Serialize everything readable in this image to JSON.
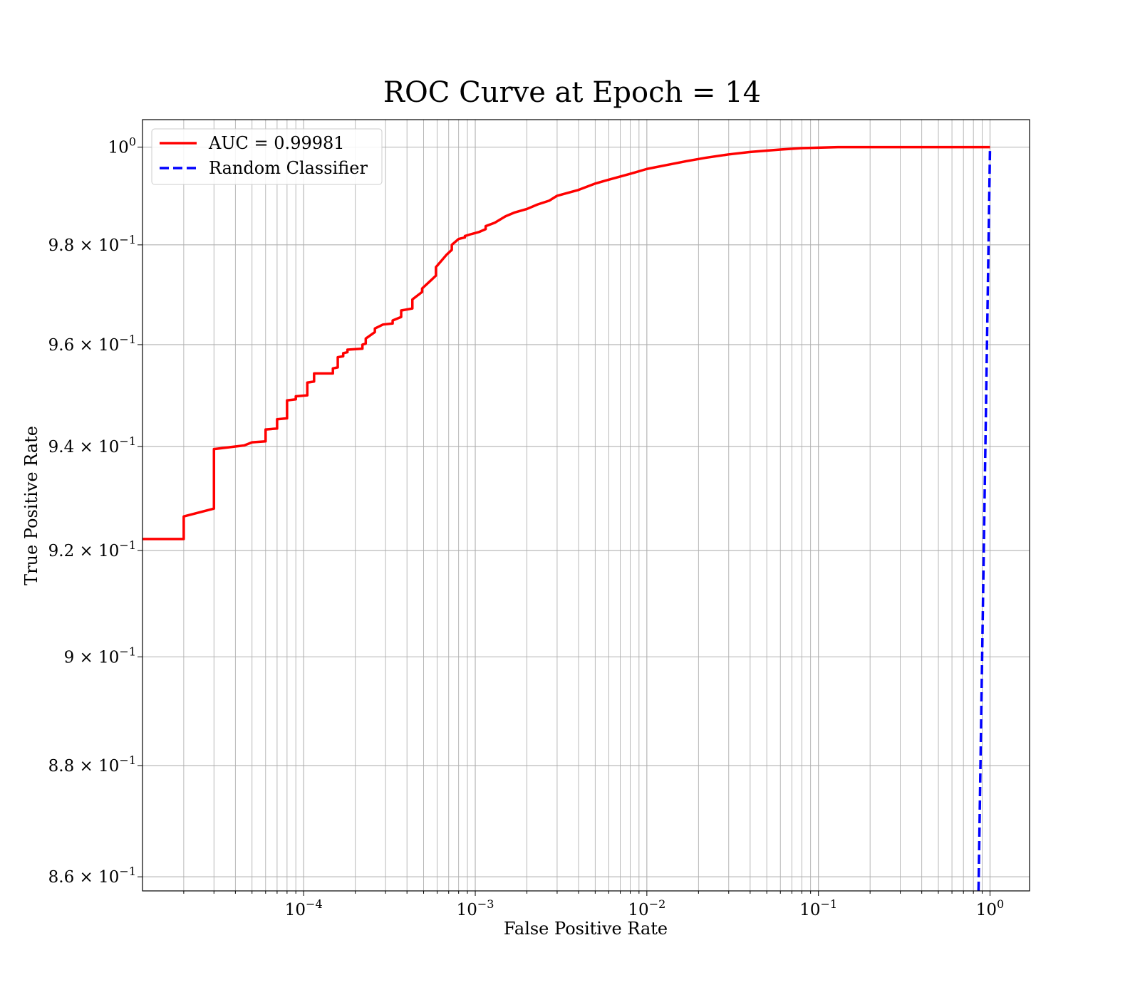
{
  "chart_data": {
    "type": "line",
    "title": "ROC Curve at Epoch = 14",
    "xlabel": "False Positive Rate",
    "ylabel": "True Positive Rate",
    "xscale": "log",
    "yscale": "log",
    "xlim": [
      1.15e-05,
      1.7
    ],
    "ylim": [
      0.8575,
      1.0057
    ],
    "grid": true,
    "legend_position": "upper-left",
    "x_ticks": [
      {
        "value": 0.0001,
        "base": "10",
        "exp": "−4"
      },
      {
        "value": 0.001,
        "base": "10",
        "exp": "−3"
      },
      {
        "value": 0.01,
        "base": "10",
        "exp": "−2"
      },
      {
        "value": 0.1,
        "base": "10",
        "exp": "−1"
      },
      {
        "value": 1,
        "base": "10",
        "exp": "0"
      }
    ],
    "y_ticks": [
      {
        "value": 0.86,
        "base": "8.6 × 10",
        "exp": "−1"
      },
      {
        "value": 0.88,
        "base": "8.8 × 10",
        "exp": "−1"
      },
      {
        "value": 0.9,
        "base": "9 × 10",
        "exp": "−1"
      },
      {
        "value": 0.92,
        "base": "9.2 × 10",
        "exp": "−1"
      },
      {
        "value": 0.94,
        "base": "9.4 × 10",
        "exp": "−1"
      },
      {
        "value": 0.96,
        "base": "9.6 × 10",
        "exp": "−1"
      },
      {
        "value": 0.98,
        "base": "9.8 × 10",
        "exp": "−1"
      },
      {
        "value": 1.0,
        "base": "10",
        "exp": "0"
      }
    ],
    "series": [
      {
        "name": "AUC = 0.99981",
        "color": "#ff0000",
        "style": "solid",
        "points": [
          [
            1.15e-05,
            0.9222
          ],
          [
            2e-05,
            0.9222
          ],
          [
            2e-05,
            0.9265
          ],
          [
            3e-05,
            0.928
          ],
          [
            3e-05,
            0.9395
          ],
          [
            4.5e-05,
            0.9402
          ],
          [
            5e-05,
            0.9408
          ],
          [
            6e-05,
            0.941
          ],
          [
            6e-05,
            0.9433
          ],
          [
            7e-05,
            0.9435
          ],
          [
            7e-05,
            0.9453
          ],
          [
            8e-05,
            0.9455
          ],
          [
            8e-05,
            0.949
          ],
          [
            9e-05,
            0.9492
          ],
          [
            9e-05,
            0.9498
          ],
          [
            0.000105,
            0.95
          ],
          [
            0.000105,
            0.9525
          ],
          [
            0.000115,
            0.9527
          ],
          [
            0.000115,
            0.9543
          ],
          [
            0.000148,
            0.9543
          ],
          [
            0.000148,
            0.9553
          ],
          [
            0.000158,
            0.9555
          ],
          [
            0.000158,
            0.9575
          ],
          [
            0.00017,
            0.9577
          ],
          [
            0.00017,
            0.9583
          ],
          [
            0.00018,
            0.9585
          ],
          [
            0.00018,
            0.959
          ],
          [
            0.00022,
            0.9592
          ],
          [
            0.00022,
            0.96
          ],
          [
            0.00023,
            0.9602
          ],
          [
            0.00023,
            0.9612
          ],
          [
            0.00026,
            0.9625
          ],
          [
            0.00026,
            0.9632
          ],
          [
            0.00029,
            0.964
          ],
          [
            0.00033,
            0.9642
          ],
          [
            0.00033,
            0.9648
          ],
          [
            0.00037,
            0.9655
          ],
          [
            0.00037,
            0.9668
          ],
          [
            0.00043,
            0.9672
          ],
          [
            0.00043,
            0.969
          ],
          [
            0.00049,
            0.9705
          ],
          [
            0.00049,
            0.9712
          ],
          [
            0.00055,
            0.9728
          ],
          [
            0.00059,
            0.9738
          ],
          [
            0.00059,
            0.9755
          ],
          [
            0.00068,
            0.978
          ],
          [
            0.00073,
            0.979
          ],
          [
            0.00073,
            0.98
          ],
          [
            0.0008,
            0.9812
          ],
          [
            0.00087,
            0.9815
          ],
          [
            0.00087,
            0.9818
          ],
          [
            0.00095,
            0.9822
          ],
          [
            0.00105,
            0.9826
          ],
          [
            0.00115,
            0.9832
          ],
          [
            0.00115,
            0.9838
          ],
          [
            0.0013,
            0.9845
          ],
          [
            0.0015,
            0.9858
          ],
          [
            0.0017,
            0.9866
          ],
          [
            0.002,
            0.9873
          ],
          [
            0.0023,
            0.9882
          ],
          [
            0.0027,
            0.989
          ],
          [
            0.003,
            0.99
          ],
          [
            0.004,
            0.9912
          ],
          [
            0.005,
            0.9925
          ],
          [
            0.006,
            0.9933
          ],
          [
            0.008,
            0.9945
          ],
          [
            0.01,
            0.9955
          ],
          [
            0.013,
            0.9963
          ],
          [
            0.017,
            0.9971
          ],
          [
            0.022,
            0.9978
          ],
          [
            0.03,
            0.9985
          ],
          [
            0.04,
            0.999
          ],
          [
            0.06,
            0.9995
          ],
          [
            0.08,
            0.9998
          ],
          [
            0.13,
            1.0
          ],
          [
            1.0,
            1.0
          ]
        ]
      },
      {
        "name": "Random Classifier",
        "color": "#0000ff",
        "style": "dashed",
        "points": [
          [
            0.857,
            0.857
          ],
          [
            1.0,
            1.0
          ]
        ]
      }
    ]
  }
}
